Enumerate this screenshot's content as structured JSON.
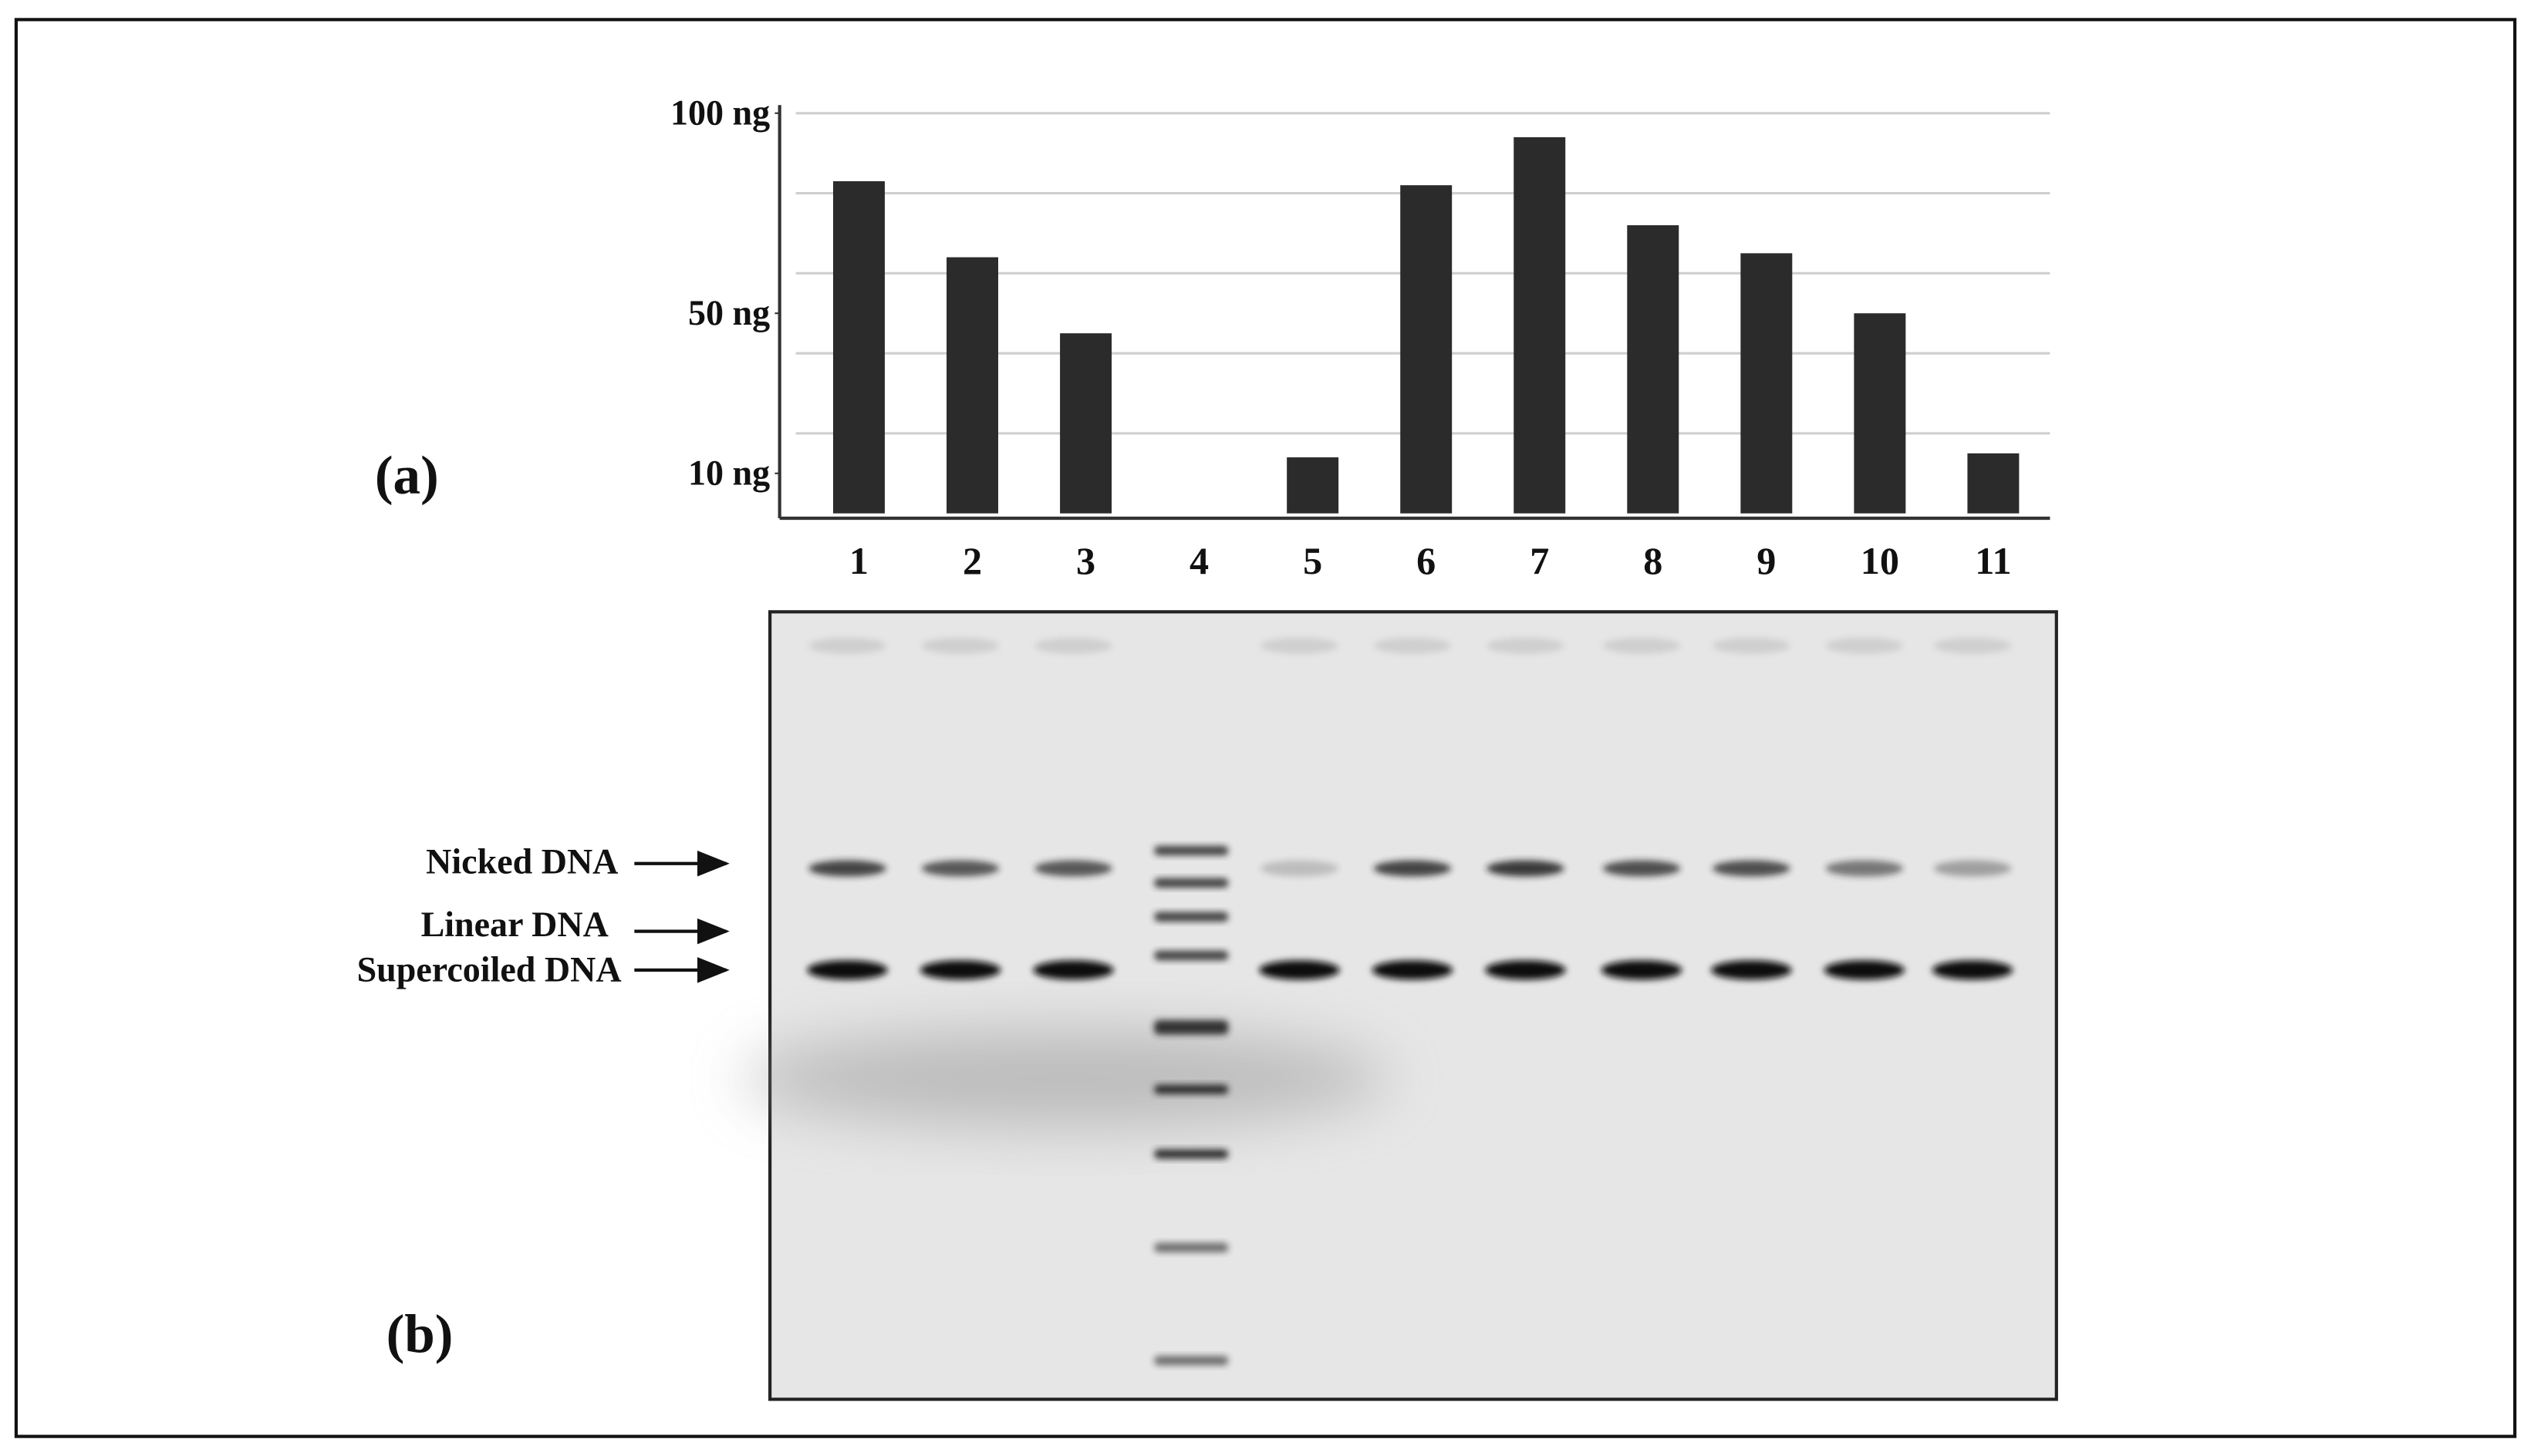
{
  "chart_data": {
    "type": "bar",
    "panel_label": "(a)",
    "categories": [
      "1",
      "2",
      "3",
      "4",
      "5",
      "6",
      "7",
      "8",
      "9",
      "10",
      "11"
    ],
    "values": [
      83,
      64,
      45,
      0,
      14,
      82,
      94,
      72,
      65,
      50,
      15
    ],
    "color": "#2b2b2b",
    "ylim": [
      0,
      100
    ],
    "yticks": [
      {
        "value": 100,
        "label": "100 ng"
      },
      {
        "value": 50,
        "label": "50 ng"
      },
      {
        "value": 10,
        "label": "10 ng"
      }
    ],
    "ygrid": [
      20,
      40,
      60,
      80,
      100
    ],
    "grid": true
  },
  "gel": {
    "panel_label": "(b)",
    "band_labels": [
      "Nicked DNA",
      "Linear DNA",
      "Supercoiled DNA"
    ]
  }
}
